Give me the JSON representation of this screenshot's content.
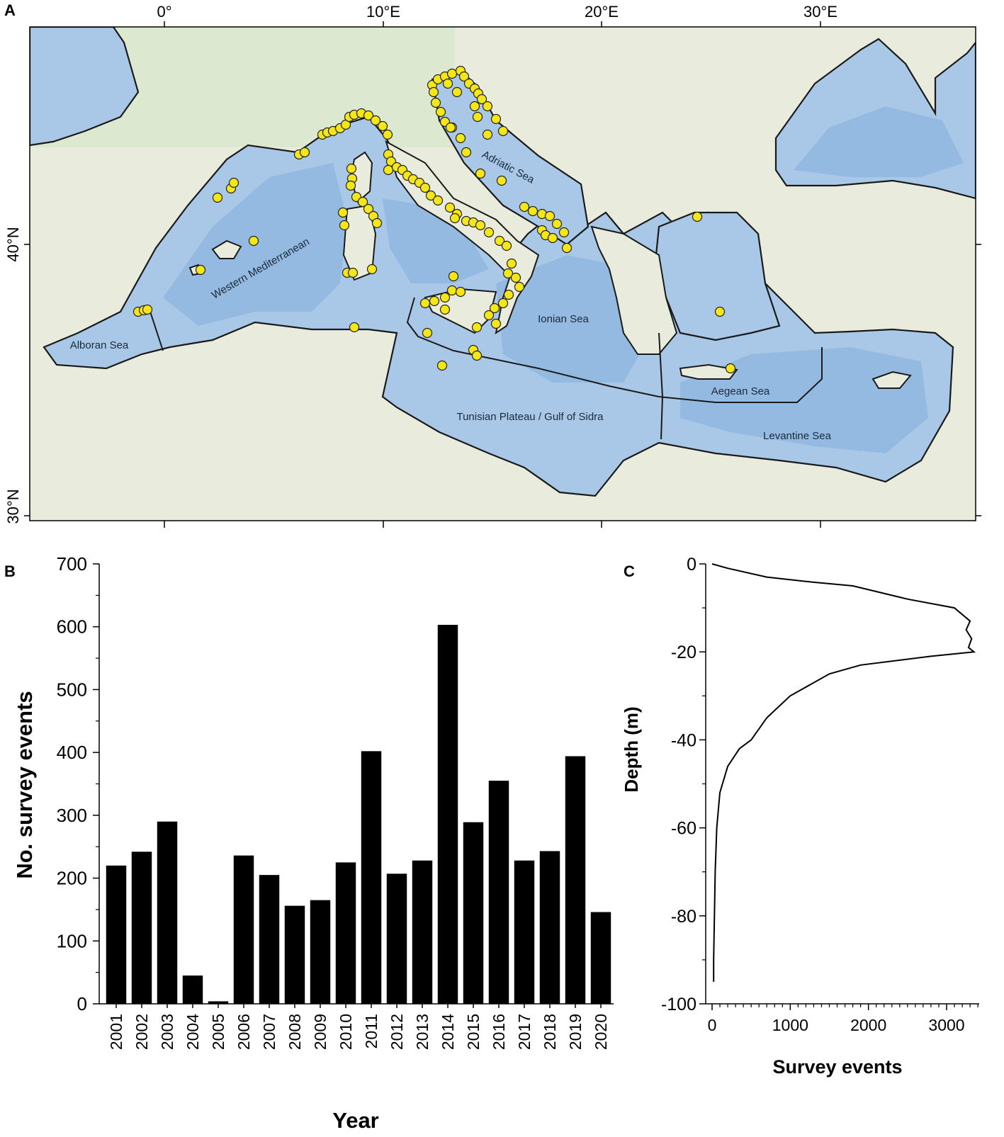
{
  "panels": {
    "a": "A",
    "b": "B",
    "c": "C"
  },
  "map": {
    "lon_labels": [
      "0°",
      "10°E",
      "20°E",
      "30°E"
    ],
    "lat_labels": [
      "40°N",
      "30°N"
    ],
    "regions": {
      "alboran": "Alboran Sea",
      "western": "Western Mediterranean",
      "adriatic": "Adriatic Sea",
      "ionian": "Ionian Sea",
      "tunisian": "Tunisian Plateau / Gulf of Sidra",
      "aegean": "Aegean Sea",
      "levantine": "Levantine Sea"
    },
    "colors": {
      "sea": "#a9c8e8",
      "deep_sea": "#8cb3df",
      "land": "#e9ecdc",
      "land_green": "#d4e6c6",
      "survey_point": "#f5e61a",
      "boundary": "#1a1a1a"
    },
    "legend_marker": "survey-site-marker"
  },
  "chart_data": [
    {
      "type": "bar",
      "ylabel": "No. survey events",
      "xlabel": "Year",
      "ylim": [
        0,
        700
      ],
      "yticks": [
        "0",
        "100",
        "200",
        "300",
        "400",
        "500",
        "600",
        "700"
      ],
      "categories": [
        "2001",
        "2002",
        "2003",
        "2004",
        "2005",
        "2006",
        "2007",
        "2008",
        "2009",
        "2010",
        "2011",
        "2012",
        "2013",
        "2014",
        "2015",
        "2016",
        "2017",
        "2018",
        "2019",
        "2020"
      ],
      "values": [
        220,
        242,
        290,
        45,
        4,
        236,
        205,
        156,
        165,
        225,
        402,
        207,
        228,
        603,
        289,
        355,
        228,
        243,
        394,
        146
      ],
      "color": "#000000"
    },
    {
      "type": "line",
      "ylabel": "Depth (m)",
      "xlabel": "Survey events",
      "xlim": [
        -100,
        3500
      ],
      "ylim": [
        -100,
        0
      ],
      "xticks": [
        "0",
        "1000",
        "2000",
        "3000"
      ],
      "yticks": [
        "0",
        "-20",
        "-40",
        "-60",
        "-80",
        "-100"
      ],
      "x": [
        0,
        200,
        700,
        1200,
        1800,
        2500,
        3100,
        3300,
        3250,
        3320,
        3280,
        3350,
        2800,
        1900,
        1500,
        1000,
        700,
        500,
        350,
        200,
        100,
        60,
        40,
        30,
        20,
        20
      ],
      "y": [
        0,
        -1,
        -3,
        -4,
        -5,
        -8,
        -10,
        -13,
        -15,
        -17,
        -19,
        -20,
        -21,
        -23,
        -25,
        -30,
        -35,
        -40,
        -42,
        -46,
        -52,
        -60,
        -70,
        -80,
        -90,
        -95
      ]
    }
  ]
}
